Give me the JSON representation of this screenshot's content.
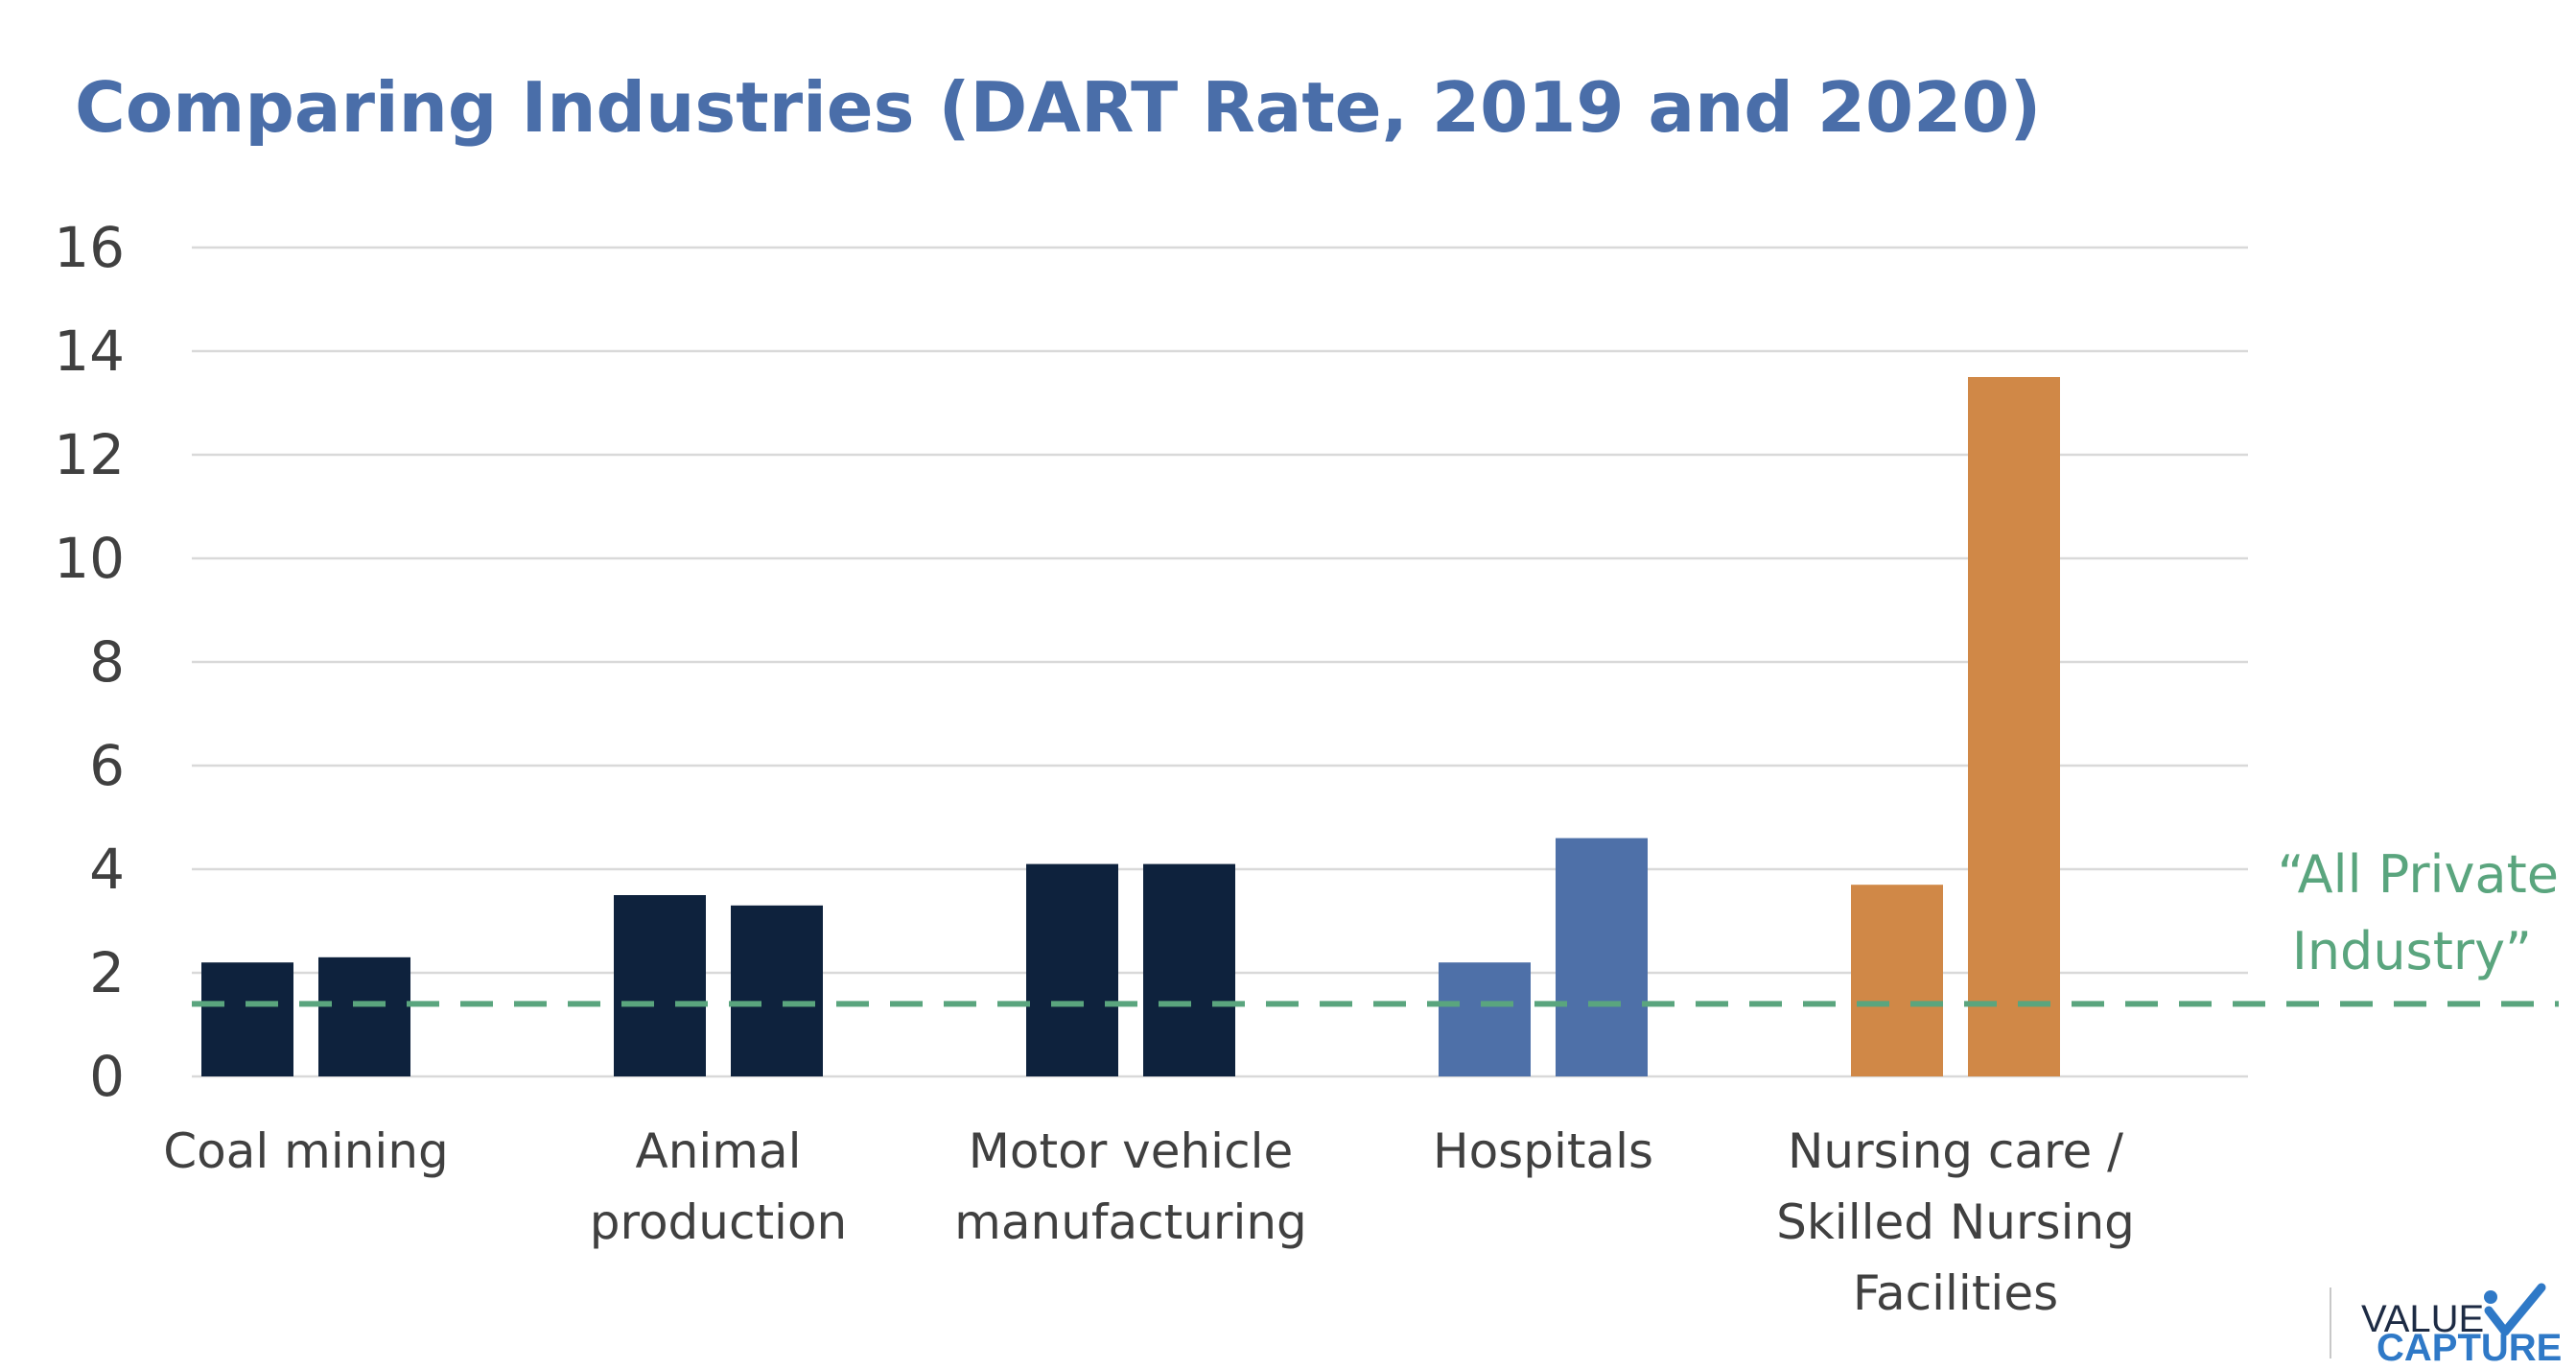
{
  "chart_data": {
    "type": "bar",
    "title": "Comparing Industries (DART Rate, 2019 and 2020)",
    "xlabel": "",
    "ylabel": "",
    "ylim": [
      0,
      16
    ],
    "yticks": [
      "0",
      "2",
      "4",
      "6",
      "8",
      "10",
      "12",
      "14",
      "16"
    ],
    "grid": true,
    "legend": "none",
    "series_names": [
      "2019",
      "2020"
    ],
    "categories": [
      {
        "label_lines": [
          "Coal mining"
        ],
        "values": [
          2.2,
          2.3
        ],
        "color": "#0e223d"
      },
      {
        "label_lines": [
          "Animal",
          "production"
        ],
        "values": [
          3.5,
          3.3
        ],
        "color": "#0e223d"
      },
      {
        "label_lines": [
          "Motor vehicle",
          "manufacturing"
        ],
        "values": [
          4.1,
          4.1
        ],
        "color": "#0e223d"
      },
      {
        "label_lines": [
          "Hospitals"
        ],
        "values": [
          2.2,
          4.6
        ],
        "color": "#4e70a8"
      },
      {
        "label_lines": [
          "Nursing care /",
          "Skilled Nursing",
          "Facilities"
        ],
        "values": [
          3.7,
          13.5
        ],
        "color": "#d08847"
      }
    ],
    "reference_line": {
      "value": 1.4,
      "label_lines": [
        "“All Private",
        "Industry”"
      ],
      "color": "#5aa57e",
      "style": "dashed"
    }
  },
  "logo": {
    "line1": "VALUE",
    "line2": "CAPTURE",
    "check_color": "#2f79c7"
  }
}
